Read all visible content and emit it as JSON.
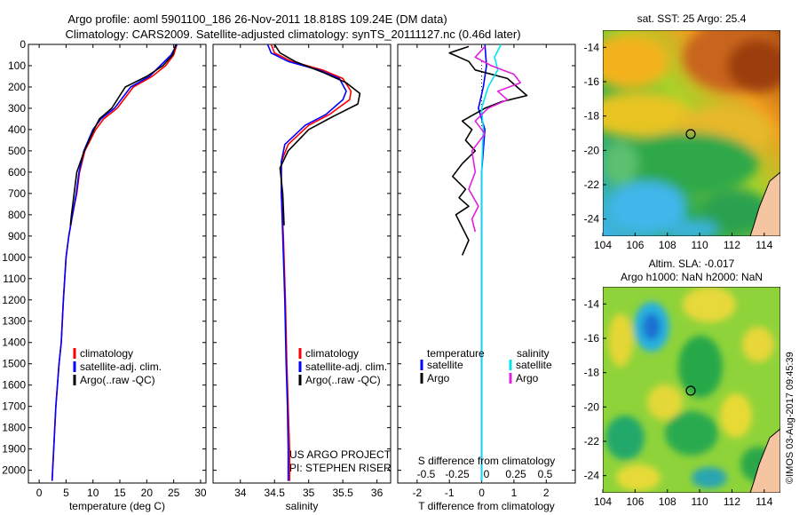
{
  "header": {
    "line1": "Argo profile: aoml 5901100_186 26-Nov-2011 18.818S 109.24E (DM data)",
    "line2": "Climatology: CARS2009. Satellite-adjusted climatology: synTS_20111127.nc (0.46d later)"
  },
  "side_stamp": "©IMOS 03-Aug-2017 09:45:39",
  "colors": {
    "climatology": "#ff0000",
    "satellite": "#0000ff",
    "argo": "#000000",
    "sal_satellite": "#00e5ee",
    "sal_argo": "#e020e0"
  },
  "chart_data": [
    {
      "id": "temperature",
      "type": "line",
      "xlabel": "temperature (deg C)",
      "xlim": [
        -2,
        31
      ],
      "xticks": [
        0,
        5,
        10,
        15,
        20,
        25,
        30
      ],
      "ylim": [
        0,
        2060
      ],
      "yticks": [
        0,
        100,
        200,
        300,
        400,
        500,
        600,
        700,
        800,
        900,
        1000,
        1100,
        1200,
        1300,
        1400,
        1500,
        1600,
        1700,
        1800,
        1900,
        2000
      ],
      "legend": [
        "climatology",
        "satellite-adj. clim.",
        "Argo(..raw -QC)"
      ],
      "series": [
        {
          "name": "climatology",
          "color": "#ff0000",
          "x": [
            25.6,
            25.0,
            23.5,
            21.0,
            17.5,
            14.5,
            12.0,
            10.5,
            8.5,
            7.5,
            7.0,
            6.2,
            5.5,
            5.0,
            4.5,
            4.1,
            3.7,
            3.4,
            3.1,
            2.9,
            2.6,
            2.4
          ],
          "y": [
            0,
            50,
            100,
            150,
            200,
            300,
            350,
            400,
            500,
            600,
            700,
            800,
            900,
            1000,
            1200,
            1400,
            1500,
            1600,
            1700,
            1800,
            1950,
            2050
          ]
        },
        {
          "name": "satellite-adj. clim.",
          "color": "#0000ff",
          "x": [
            25.6,
            24.5,
            22.5,
            20.5,
            17.0,
            14.0,
            11.5,
            10.0,
            8.3,
            7.4,
            6.9,
            6.2,
            5.5,
            5.0,
            4.5,
            4.1,
            3.7,
            3.4,
            3.1,
            2.9,
            2.6,
            2.4
          ],
          "y": [
            0,
            50,
            100,
            150,
            200,
            300,
            350,
            400,
            500,
            600,
            700,
            800,
            900,
            1000,
            1200,
            1400,
            1500,
            1600,
            1700,
            1800,
            1950,
            2050
          ]
        },
        {
          "name": "Argo(..raw -QC)",
          "color": "#000000",
          "x": [
            25.4,
            24.8,
            23.0,
            20.0,
            16.0,
            13.5,
            11.2,
            10.2,
            8.4,
            7.0,
            6.5,
            6.0,
            5.8
          ],
          "y": [
            0,
            50,
            100,
            150,
            200,
            300,
            350,
            400,
            500,
            600,
            700,
            800,
            850
          ]
        }
      ]
    },
    {
      "id": "salinity",
      "type": "line",
      "xlabel": "salinity",
      "xlim": [
        33.6,
        36.2
      ],
      "xticks": [
        34,
        34.5,
        35,
        35.5,
        36
      ],
      "ylim": [
        0,
        2060
      ],
      "legend": [
        "climatology",
        "satellite-adj. clim.",
        "Argo(..raw -QC)"
      ],
      "annotations": [
        "US ARGO PROJECT",
        "PI: STEPHEN RISER"
      ],
      "series": [
        {
          "name": "climatology",
          "color": "#ff0000",
          "x": [
            34.45,
            34.5,
            34.75,
            35.2,
            35.5,
            35.62,
            35.6,
            35.3,
            35.0,
            34.7,
            34.6,
            34.6,
            34.63,
            34.66,
            34.68,
            34.7,
            34.72,
            34.72
          ],
          "y": [
            0,
            40,
            80,
            120,
            160,
            220,
            260,
            330,
            380,
            470,
            550,
            700,
            900,
            1200,
            1500,
            1700,
            1900,
            2050
          ]
        },
        {
          "name": "satellite-adj. clim.",
          "color": "#0000ff",
          "x": [
            34.4,
            34.45,
            34.7,
            35.15,
            35.45,
            35.55,
            35.5,
            35.25,
            34.95,
            34.65,
            34.6,
            34.6,
            34.62,
            34.65,
            34.67,
            34.69,
            34.7,
            34.7
          ],
          "y": [
            0,
            40,
            80,
            120,
            160,
            220,
            260,
            330,
            380,
            470,
            550,
            700,
            900,
            1200,
            1500,
            1700,
            1900,
            2050
          ]
        },
        {
          "name": "Argo(..raw -QC)",
          "color": "#000000",
          "x": [
            34.5,
            34.58,
            34.8,
            35.2,
            35.55,
            35.75,
            35.72,
            35.35,
            35.0,
            34.7,
            34.58,
            34.62,
            34.64
          ],
          "y": [
            0,
            40,
            80,
            130,
            180,
            230,
            280,
            340,
            400,
            500,
            580,
            700,
            850
          ]
        }
      ]
    },
    {
      "id": "difference",
      "type": "line",
      "xlabel": "T difference from climatology",
      "x2label": "S difference from climatology",
      "xlim": [
        -2.6,
        2.9
      ],
      "xticks": [
        -2,
        -1,
        0,
        1,
        2
      ],
      "x2ticks": [
        "-0.5",
        "-0.25",
        "0",
        "0.25",
        "0.5"
      ],
      "ylim": [
        0,
        2060
      ],
      "legend_headers": [
        "temperature",
        "salinity"
      ],
      "legend": [
        "satellite",
        "Argo",
        "satellite",
        "Argo"
      ],
      "series": [
        {
          "name": "satellite",
          "color": "#0000ff",
          "x": [
            0.1,
            0.15,
            0.05,
            -0.1,
            0.1,
            0.0,
            0.0,
            0.0,
            0.0,
            0.0,
            0.0
          ],
          "y": [
            0,
            100,
            200,
            300,
            400,
            600,
            800,
            1000,
            1400,
            1800,
            2050
          ]
        },
        {
          "name": "Argo",
          "color": "#000000",
          "x": [
            -0.4,
            -1.0,
            -0.4,
            -0.2,
            0.8,
            1.1,
            1.4,
            0.6,
            0.1,
            -0.6,
            -0.3,
            -0.5,
            -0.2,
            -0.6,
            -0.9,
            -0.5,
            -0.7,
            -0.4,
            -0.8,
            -0.6,
            -0.4,
            -0.6
          ],
          "y": [
            10,
            40,
            80,
            120,
            160,
            200,
            240,
            270,
            300,
            360,
            400,
            450,
            500,
            560,
            620,
            680,
            720,
            760,
            800,
            860,
            920,
            990
          ]
        },
        {
          "name": "satellite",
          "color": "#00e5ee",
          "x": [
            0.6,
            0.4,
            0.5,
            0.2,
            0.0,
            0.05,
            0.0,
            0.0,
            0.0,
            0.0,
            0.0
          ],
          "y": [
            0,
            60,
            120,
            200,
            300,
            400,
            600,
            1000,
            1400,
            1800,
            2050
          ]
        },
        {
          "name": "Argo",
          "color": "#e020e0",
          "x": [
            0.1,
            -0.2,
            0.3,
            1.0,
            1.2,
            0.5,
            0.8,
            0.2,
            -0.2,
            0.1,
            -0.3,
            -0.2,
            -0.4,
            -0.1,
            -0.3,
            -0.2
          ],
          "y": [
            10,
            60,
            100,
            140,
            180,
            220,
            260,
            300,
            360,
            420,
            500,
            600,
            680,
            760,
            820,
            880
          ]
        }
      ]
    }
  ],
  "maps": [
    {
      "id": "sst-map",
      "type": "heatmap",
      "title": "sat. SST: 25 Argo: 25.4",
      "xticks": [
        "104",
        "106",
        "108",
        "110",
        "112",
        "114"
      ],
      "yticks": [
        "-14",
        "-16",
        "-18",
        "-20",
        "-22",
        "-24"
      ],
      "xlim": [
        104,
        115
      ],
      "ylim": [
        -25,
        -13
      ],
      "marker": {
        "lon": 109.24,
        "lat": -18.818
      }
    },
    {
      "id": "sla-map",
      "type": "heatmap",
      "title": "Altim. SLA: -0.017",
      "subtitle": "Argo h1000: NaN h2000: NaN",
      "xticks": [
        "104",
        "106",
        "108",
        "110",
        "112",
        "114"
      ],
      "yticks": [
        "-14",
        "-16",
        "-18",
        "-20",
        "-22",
        "-24"
      ],
      "xlim": [
        104,
        115
      ],
      "ylim": [
        -25,
        -13
      ],
      "marker": {
        "lon": 109.24,
        "lat": -18.818
      }
    }
  ]
}
